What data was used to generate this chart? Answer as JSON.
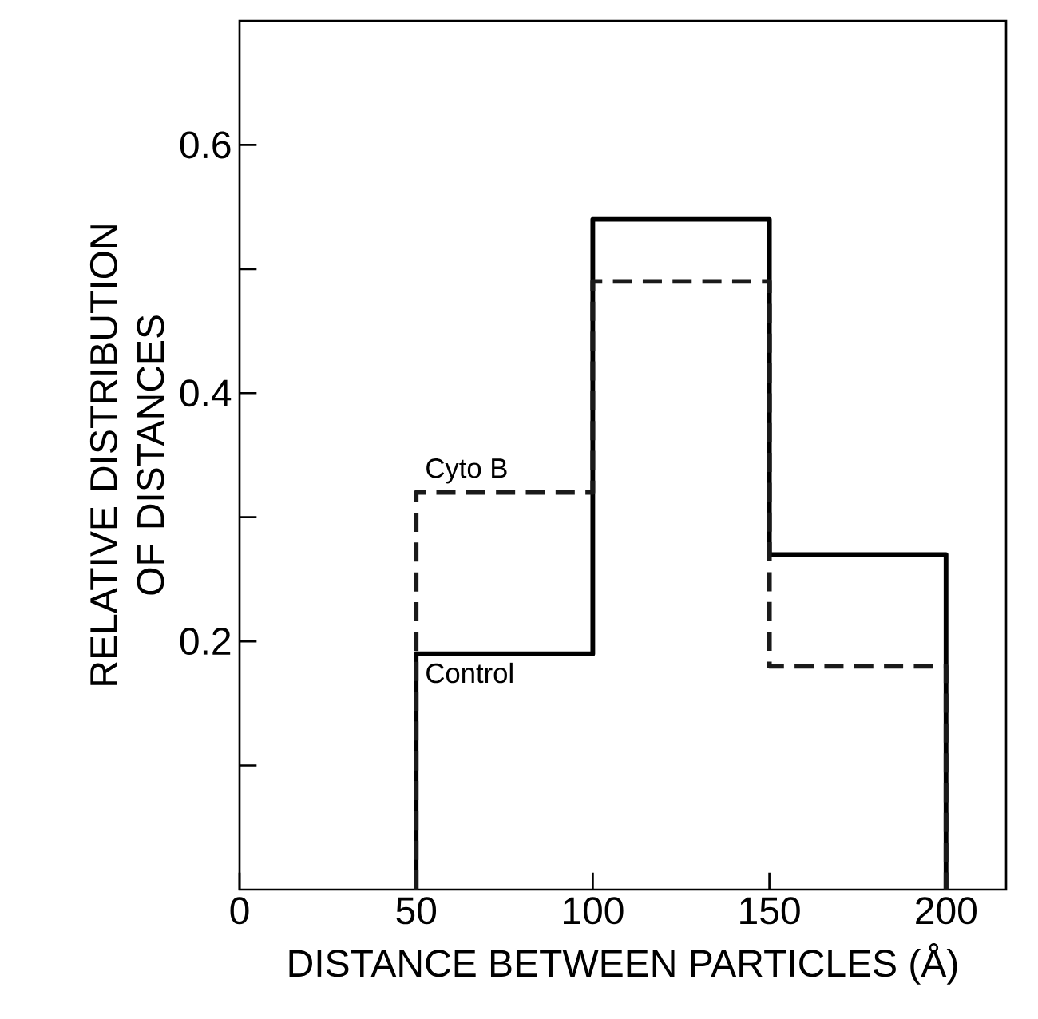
{
  "chart_data": {
    "type": "histogram",
    "xlabel": "DISTANCE BETWEEN PARTICLES (Å)",
    "ylabel": "RELATIVE DISTRIBUTION OF DISTANCES",
    "bins": [
      50,
      100,
      150,
      200
    ],
    "series": [
      {
        "name": "Control",
        "color": "#000000",
        "line_style": "solid",
        "values": [
          0.19,
          0.54,
          0.27
        ]
      },
      {
        "name": "Cyto B",
        "color": "#1a1a1a",
        "line_style": "dashed",
        "values": [
          0.32,
          0.49,
          0.18
        ]
      }
    ],
    "xlim": [
      0,
      217
    ],
    "ylim": [
      0,
      0.7
    ],
    "xticks": [
      0,
      50,
      100,
      150,
      200
    ],
    "yticks": [
      {
        "value": 0.1,
        "label": null
      },
      0.2,
      {
        "value": 0.3,
        "label": null
      },
      0.4,
      {
        "value": 0.5,
        "label": null
      },
      0.6
    ],
    "grid": false
  }
}
